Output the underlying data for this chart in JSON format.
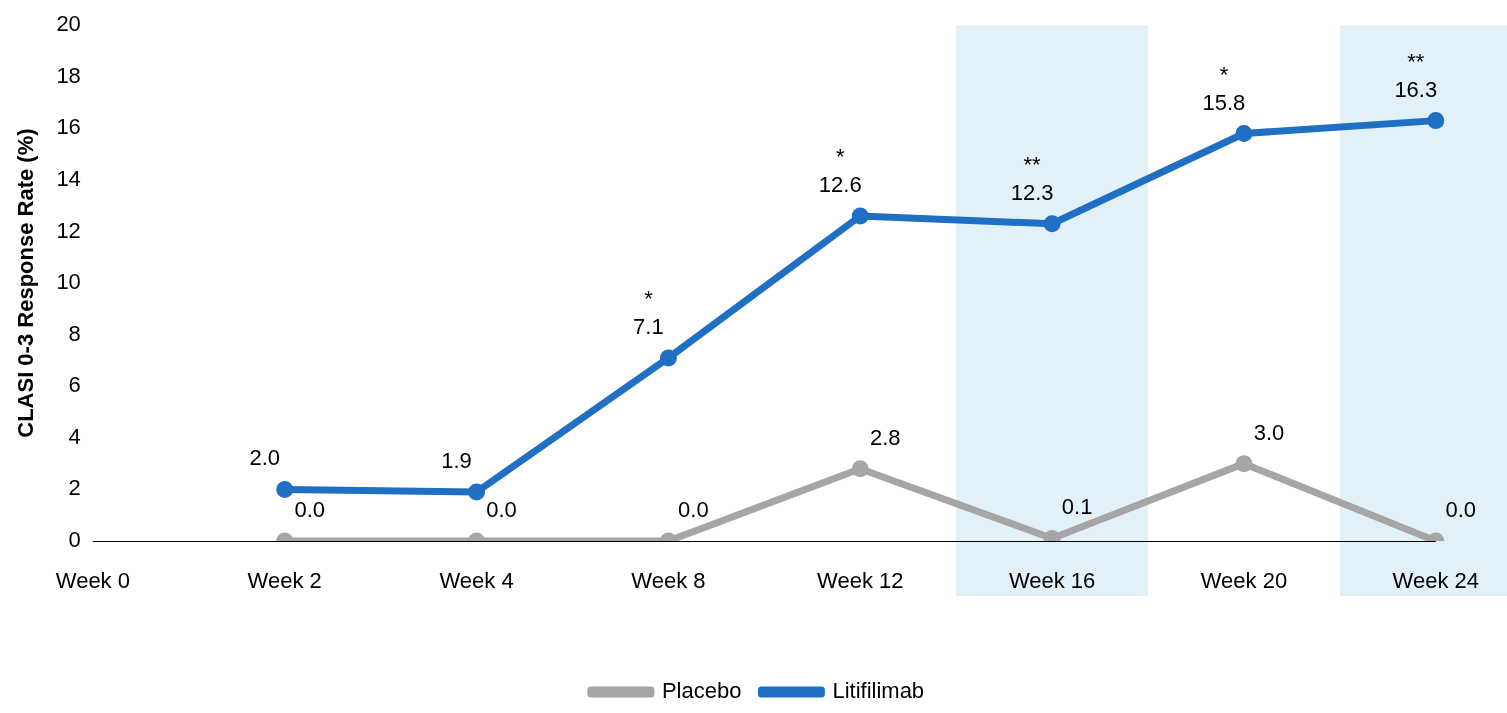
{
  "chart_data": {
    "type": "line",
    "ylabel": "CLASI 0-3 Response Rate (%)",
    "categories": [
      "Week 0",
      "Week 2",
      "Week 4",
      "Week 8",
      "Week 12",
      "Week 16",
      "Week 20",
      "Week 24"
    ],
    "series": [
      {
        "name": "Placebo",
        "color": "#a6a6a6",
        "values": [
          null,
          0.0,
          0.0,
          0.0,
          2.8,
          0.1,
          3.0,
          0.0
        ],
        "value_labels": [
          null,
          "0.0",
          "0.0",
          "0.0",
          "2.8",
          "0.1",
          "3.0",
          "0.0"
        ]
      },
      {
        "name": "Litifilimab",
        "color": "#1f6fc5",
        "values": [
          null,
          2.0,
          1.9,
          7.1,
          12.6,
          12.3,
          15.8,
          16.3
        ],
        "value_labels": [
          null,
          "2.0",
          "1.9",
          "7.1",
          "12.6",
          "12.3",
          "15.8",
          "16.3"
        ]
      }
    ],
    "ylim": [
      0,
      20
    ],
    "yticks": [
      0,
      2,
      4,
      6,
      8,
      10,
      12,
      14,
      16,
      18,
      20
    ],
    "bands": [
      {
        "axis": "x",
        "from": "Week 16",
        "to": "Week 16",
        "color": "#e2f0f8"
      },
      {
        "axis": "x",
        "from": "Week 24",
        "to": "Week 24",
        "color": "#e2f0f8"
      }
    ],
    "annotations": [
      {
        "text": "*",
        "x": "Week 8",
        "y": 7.1
      },
      {
        "text": "*",
        "x": "Week 12",
        "y": 12.6
      },
      {
        "text": "**",
        "x": "Week 16",
        "y": 12.3
      },
      {
        "text": "*",
        "x": "Week 20",
        "y": 15.8
      },
      {
        "text": "**",
        "x": "Week 24",
        "y": 16.3
      }
    ],
    "grid": false,
    "legend": "bottom",
    "marker": "circle",
    "line_style": "solid"
  }
}
